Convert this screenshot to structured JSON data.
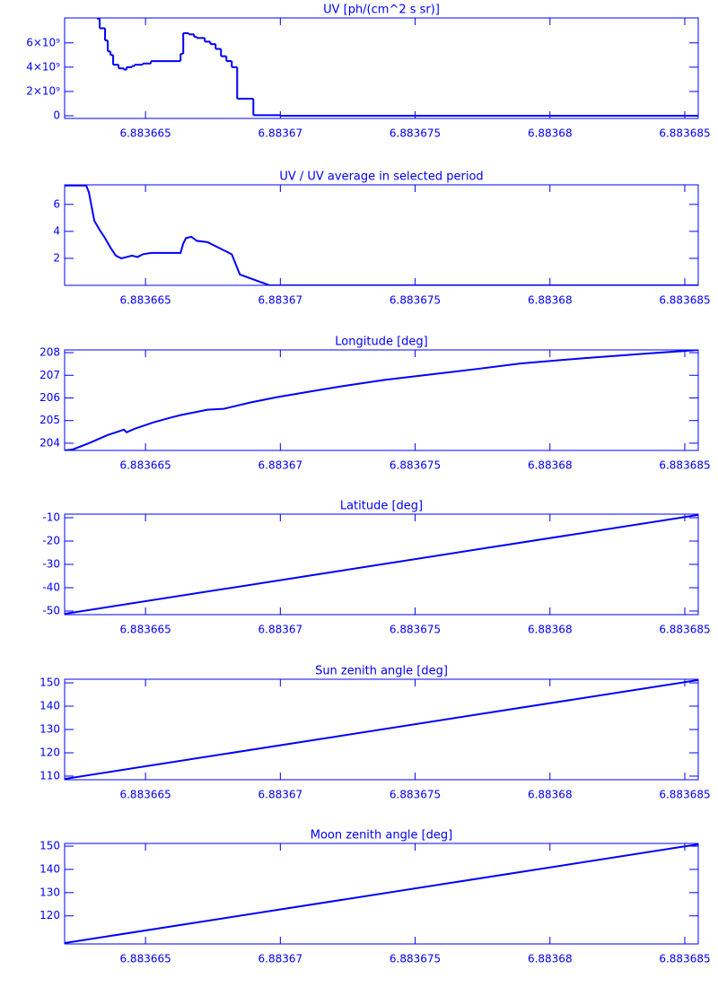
{
  "chart_data": [
    {
      "type": "line",
      "title": "UV [ph/(cm^2 s sr)]",
      "drawstyle": "steps-post",
      "color": "#0000ff",
      "x": [
        6.8836632,
        6.8836633,
        6.8836635,
        6.8836636,
        6.8836637,
        6.8836638,
        6.883664,
        6.8836642,
        6.8836643,
        6.8836645,
        6.8836646,
        6.8836649,
        6.8836652,
        6.8836663,
        6.8836664,
        6.8836666,
        6.8836668,
        6.8836669,
        6.8836672,
        6.8836674,
        6.8836676,
        6.8836678,
        6.883668,
        6.8836682,
        6.8836684,
        6.883669,
        6.88367,
        6.8836855
      ],
      "values": [
        8000000000,
        7200000000,
        6200000000,
        5300000000,
        5000000000,
        4200000000,
        3900000000,
        3800000000,
        4000000000,
        4100000000,
        4200000000,
        4300000000,
        4500000000,
        5100000000,
        6800000000,
        6700000000,
        6500000000,
        6400000000,
        6100000000,
        5900000000,
        5500000000,
        4900000000,
        4500000000,
        4000000000,
        1400000000,
        50000000,
        0,
        0
      ],
      "xlim": [
        6.883662,
        6.8836855
      ],
      "xticks": [
        6.883665,
        6.88367,
        6.883675,
        6.88368,
        6.883685
      ],
      "ylim": [
        -220000000,
        8050000000
      ],
      "yticks": [
        0,
        {
          "value": 2000000000,
          "label": "2×10⁹"
        },
        {
          "value": 4000000000,
          "label": "4×10⁹"
        },
        {
          "value": 6000000000,
          "label": "6×10⁹"
        }
      ]
    },
    {
      "type": "line",
      "title": "UV / UV average in selected period",
      "color": "#0000ff",
      "x": [
        6.883662,
        6.8836628,
        6.8836629,
        6.8836631,
        6.8836633,
        6.8836635,
        6.8836637,
        6.8836639,
        6.8836641,
        6.8836643,
        6.8836645,
        6.8836647,
        6.8836649,
        6.8836652,
        6.8836663,
        6.8836664,
        6.8836665,
        6.8836667,
        6.8836669,
        6.8836673,
        6.8836676,
        6.8836679,
        6.8836682,
        6.8836685,
        6.8836696,
        6.8836855
      ],
      "values": [
        7.4,
        7.4,
        6.9,
        4.8,
        4.1,
        3.5,
        2.8,
        2.2,
        2.0,
        2.1,
        2.2,
        2.1,
        2.3,
        2.4,
        2.4,
        3.1,
        3.5,
        3.6,
        3.3,
        3.2,
        2.9,
        2.6,
        2.3,
        0.8,
        0,
        0
      ],
      "xlim": [
        6.883662,
        6.8836855
      ],
      "xticks": [
        6.883665,
        6.88367,
        6.883675,
        6.88368,
        6.883685
      ],
      "ylim": [
        0,
        7.45
      ],
      "yticks": [
        2,
        4,
        6
      ]
    },
    {
      "type": "line",
      "title": "Longitude [deg]",
      "color": "#0000ff",
      "x": [
        6.883662,
        6.8836623,
        6.8836629,
        6.8836636,
        6.8836642,
        6.8836643,
        6.8836646,
        6.8836653,
        6.8836659,
        6.8836663,
        6.8836673,
        6.8836679,
        6.8836689,
        6.8836699,
        6.8836713,
        6.8836723,
        6.8836739,
        6.8836756,
        6.8836773,
        6.8836789,
        6.8836813,
        6.8836836,
        6.8836855
      ],
      "values": [
        203.68,
        203.72,
        204.0,
        204.36,
        204.6,
        204.48,
        204.64,
        204.92,
        205.12,
        205.24,
        205.48,
        205.52,
        205.8,
        206.04,
        206.32,
        206.52,
        206.8,
        207.04,
        207.28,
        207.52,
        207.76,
        207.96,
        208.12
      ],
      "xlim": [
        6.883662,
        6.8836855
      ],
      "xticks": [
        6.883665,
        6.88367,
        6.883675,
        6.88368,
        6.883685
      ],
      "ylim": [
        203.68,
        208.12
      ],
      "yticks": [
        204,
        205,
        206,
        207,
        208
      ]
    },
    {
      "type": "line",
      "title": "Latitude [deg]",
      "color": "#0000ff",
      "x": [
        6.883662,
        6.8836855
      ],
      "values": [
        -51.2,
        -8.8
      ],
      "xlim": [
        6.883662,
        6.8836855
      ],
      "xticks": [
        6.883665,
        6.88367,
        6.883675,
        6.88368,
        6.883685
      ],
      "ylim": [
        -51.54,
        -8.46
      ],
      "yticks": [
        -50,
        -40,
        -30,
        -20,
        -10
      ]
    },
    {
      "type": "line",
      "title": "Sun zenith angle [deg]",
      "color": "#0000ff",
      "x": [
        6.883662,
        6.8836855
      ],
      "values": [
        108.8,
        151.2
      ],
      "xlim": [
        6.883662,
        6.8836855
      ],
      "xticks": [
        6.883665,
        6.88367,
        6.883675,
        6.88368,
        6.883685
      ],
      "ylim": [
        108.45,
        151.55
      ],
      "yticks": [
        110,
        120,
        130,
        140,
        150
      ]
    },
    {
      "type": "line",
      "title": "Moon zenith angle [deg]",
      "color": "#0000ff",
      "x": [
        6.883662,
        6.8836855
      ],
      "values": [
        108.3,
        150.8
      ],
      "xlim": [
        6.883662,
        6.8836855
      ],
      "xticks": [
        6.883665,
        6.88367,
        6.883675,
        6.88368,
        6.883685
      ],
      "ylim": [
        107.92,
        151.17
      ],
      "yticks": [
        120,
        130,
        140,
        150
      ]
    }
  ]
}
